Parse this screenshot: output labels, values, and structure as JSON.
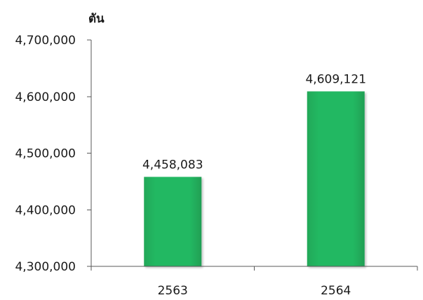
{
  "chart_data": {
    "type": "bar",
    "ylabel": "ตัน",
    "categories": [
      "2563",
      "2564"
    ],
    "values": [
      4458083,
      4609121
    ],
    "value_labels": [
      "4,458,083",
      "4,609,121"
    ],
    "ylim": [
      4300000,
      4700000
    ],
    "yticks": [
      4300000,
      4400000,
      4500000,
      4600000,
      4700000
    ],
    "ytick_labels": [
      "4,300,000",
      "4,400,000",
      "4,500,000",
      "4,600,000",
      "4,700,000"
    ],
    "grid": false,
    "legend": "none",
    "bar_color": "#22b35e",
    "bar_edge_color": "#1f9e53"
  }
}
